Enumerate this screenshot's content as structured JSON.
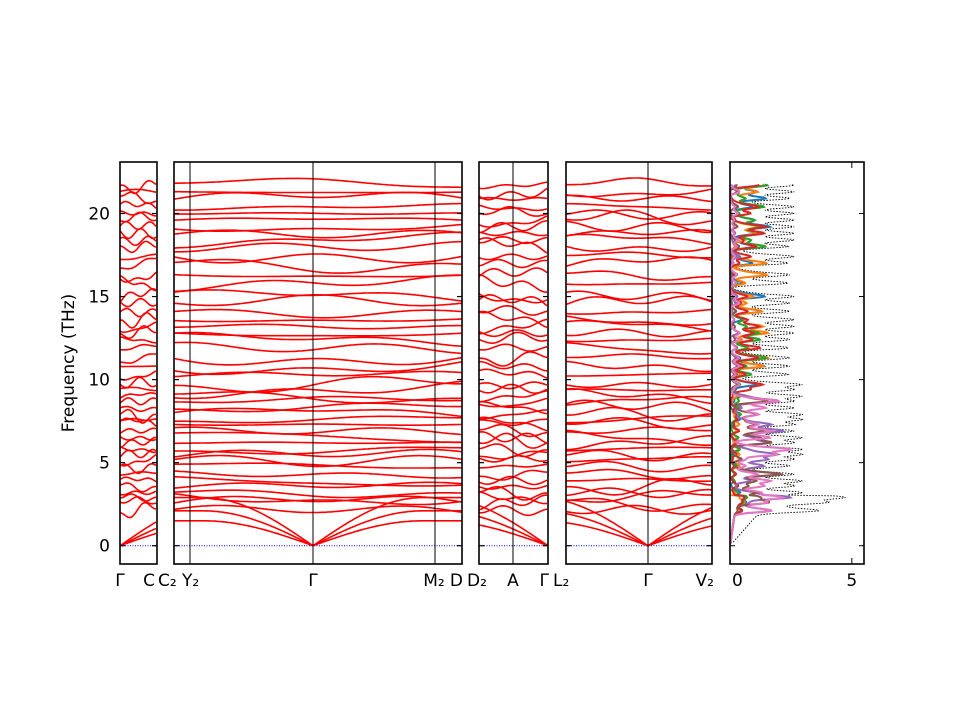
{
  "chart_data": {
    "type": "line",
    "title": "",
    "ylabel": "Frequency (THz)",
    "ylim": [
      -1.1,
      23.1
    ],
    "yticks": [
      0,
      5,
      10,
      15,
      20
    ],
    "band_color": "#ff0000",
    "zero_line_color": "#0000ff",
    "panels": [
      {
        "labels": [
          "Γ",
          "C"
        ],
        "gamma_at": [
          0
        ]
      },
      {
        "labels": [
          "C₂",
          "Y₂",
          "Γ",
          "M₂",
          "D"
        ],
        "gamma_at": [
          2
        ]
      },
      {
        "labels": [
          "D₂",
          "A",
          "Γ"
        ],
        "gamma_at": [
          2
        ]
      },
      {
        "labels": [
          "L₂",
          "Γ",
          "V₂"
        ],
        "gamma_at": [
          1
        ]
      }
    ],
    "band_frequencies_at_gamma": [
      2.1,
      2.6,
      2.9,
      3.2,
      3.6,
      3.9,
      4.3,
      4.8,
      5.2,
      5.5,
      5.8,
      6.2,
      6.5,
      6.9,
      7.3,
      7.6,
      7.9,
      8.3,
      8.7,
      9.0,
      9.4,
      9.7,
      10.3,
      10.8,
      11.3,
      11.9,
      12.4,
      12.8,
      13.2,
      13.6,
      14.1,
      14.6,
      15.0,
      15.8,
      16.3,
      17.0,
      17.4,
      18.0,
      18.4,
      18.8,
      19.2,
      19.6,
      20.0,
      20.4,
      20.9,
      21.3,
      21.7
    ],
    "acoustic_zone_edge_frequencies": [
      1.5,
      2.1,
      2.9
    ],
    "dos": {
      "xlabel_ticks": [
        0,
        5
      ],
      "xlim": [
        0,
        5.5
      ],
      "total_style": "black dotted",
      "partial_colors": [
        "#1f77b4",
        "#ff7f0e",
        "#2ca02c",
        "#d62728",
        "#9467bd",
        "#8c564b",
        "#e377c2"
      ]
    }
  }
}
